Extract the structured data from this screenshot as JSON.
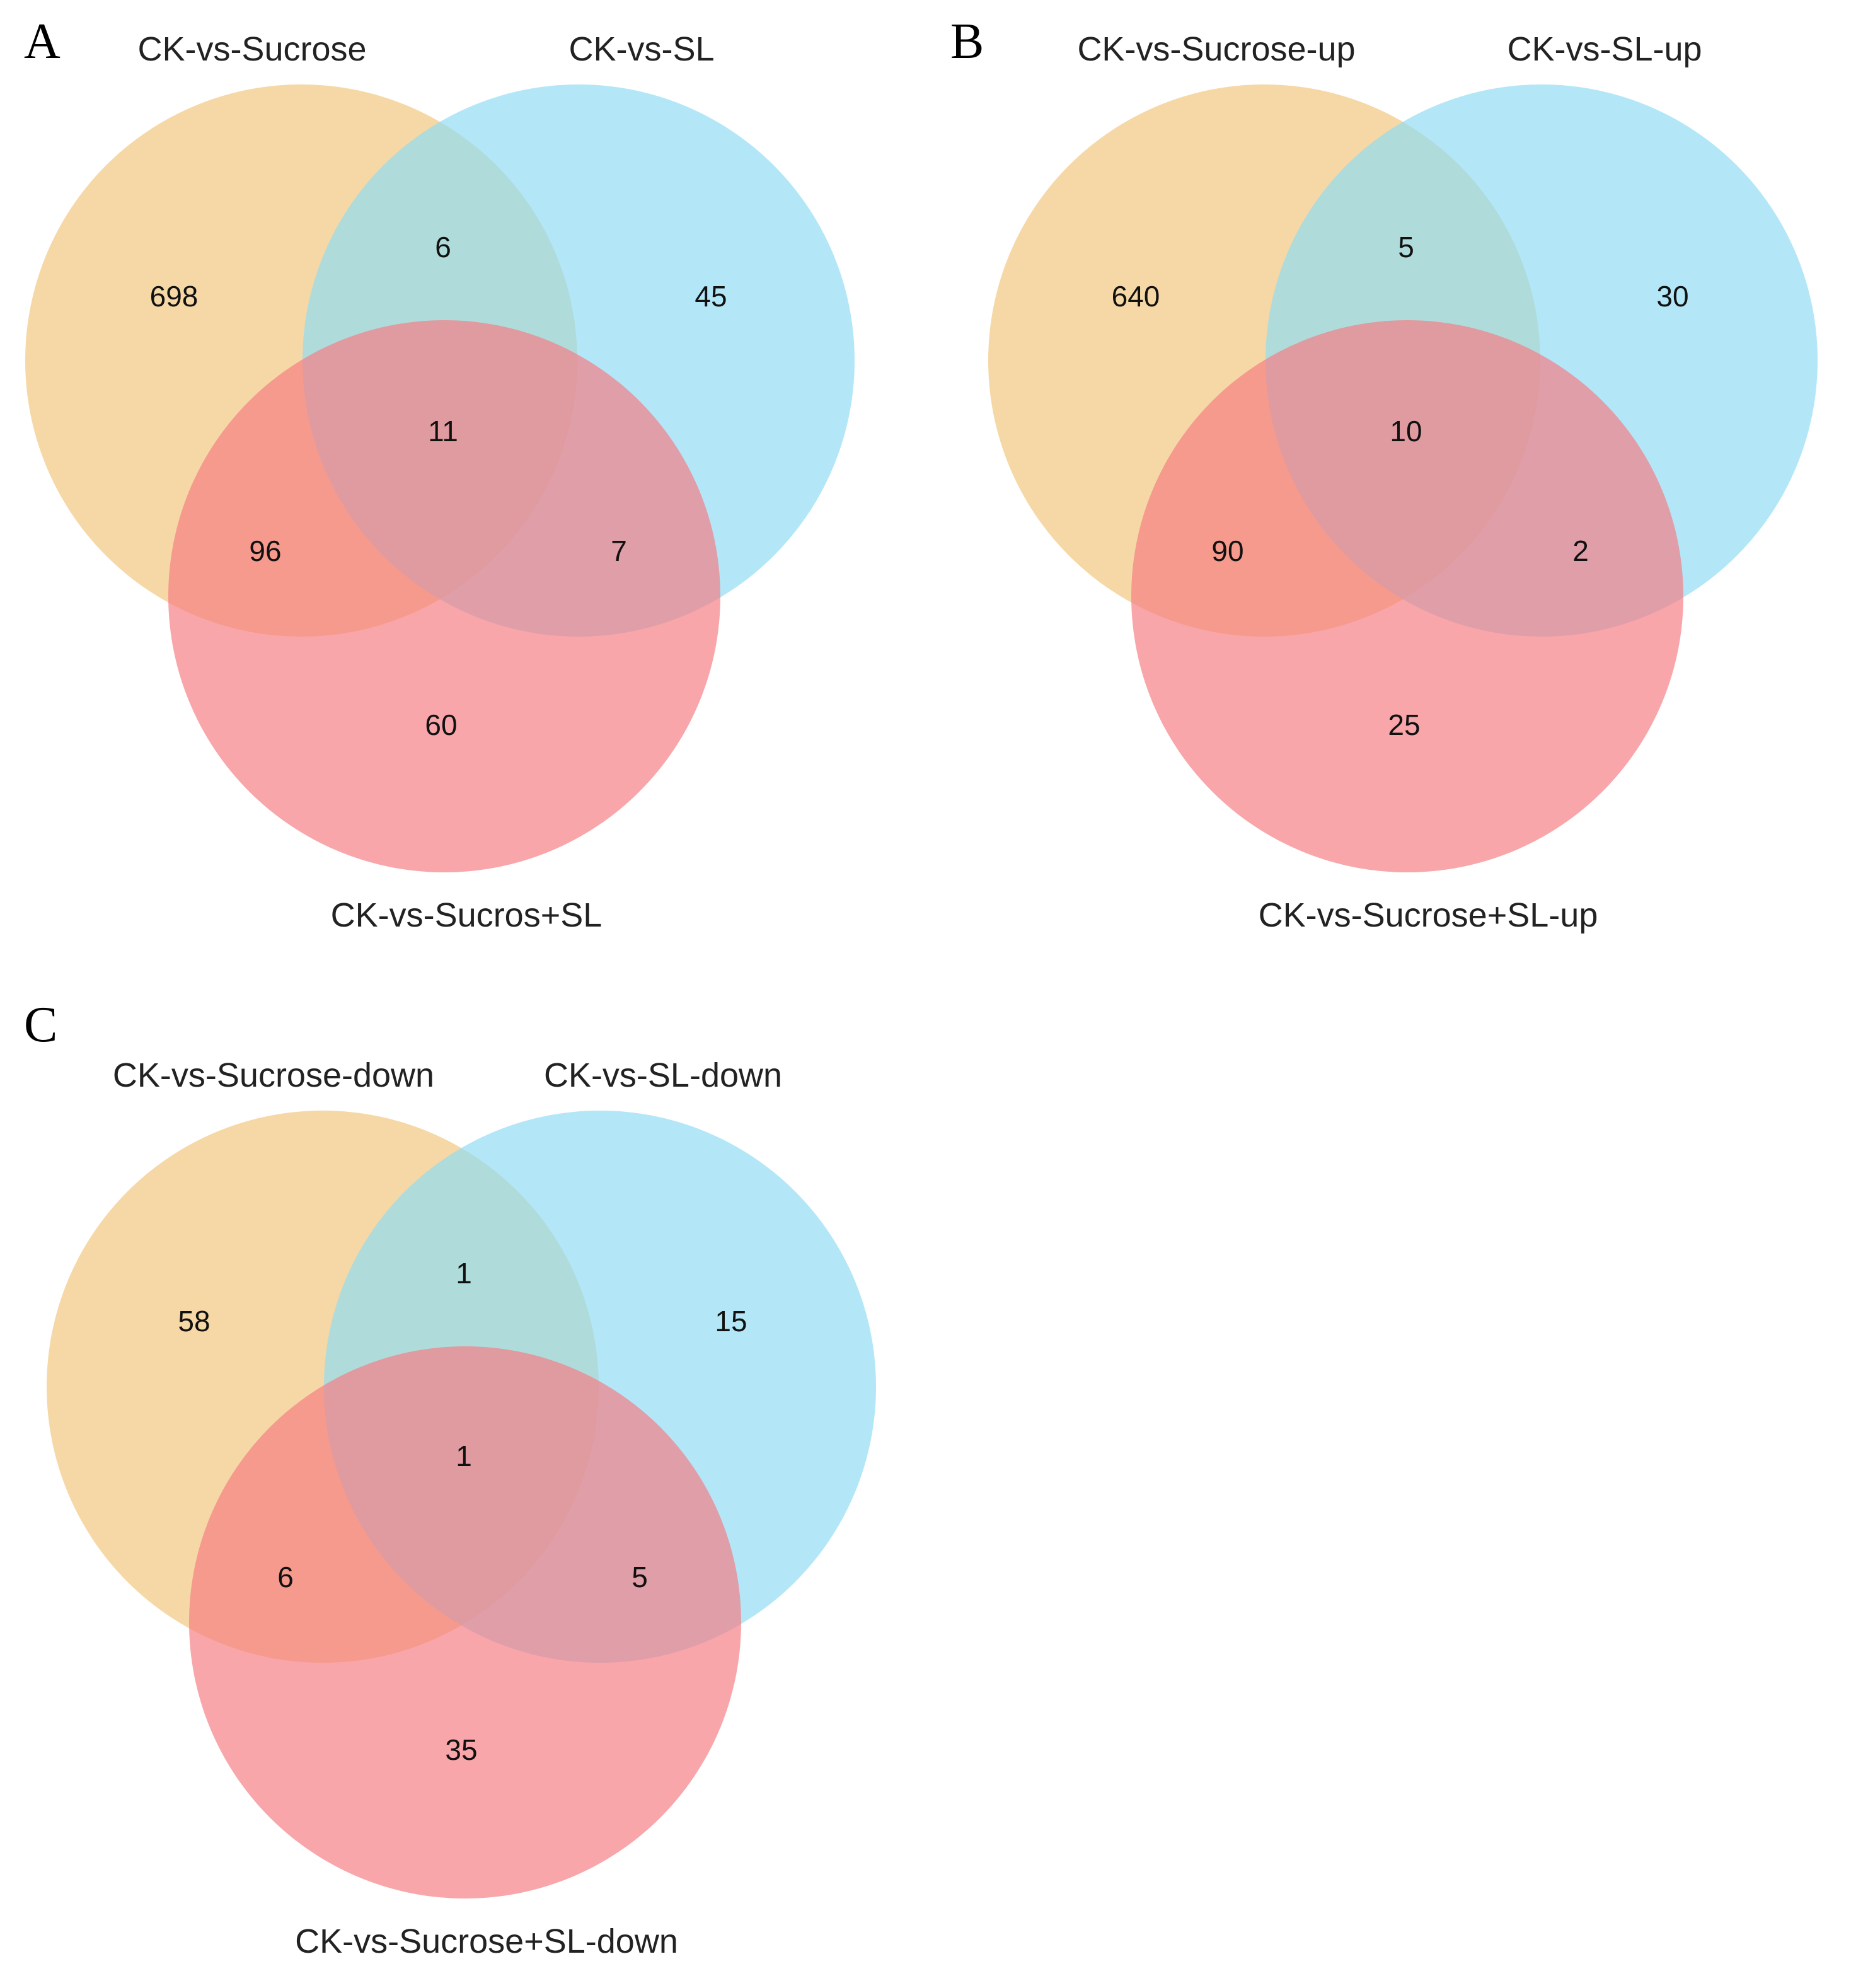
{
  "colors": {
    "set1": "#f2c57c",
    "set2": "#8fdcf4",
    "set3": "#f47c82",
    "background": "#ffffff"
  },
  "panels": [
    {
      "letter": "A",
      "set1": "CK-vs-Sucrose",
      "set2": "CK-vs-SL",
      "set3": "CK-vs-Sucros+SL",
      "counts": {
        "only1": "698",
        "only2": "45",
        "only3": "60",
        "s12": "6",
        "s13": "96",
        "s23": "7",
        "s123": "11"
      }
    },
    {
      "letter": "B",
      "set1": "CK-vs-Sucrose-up",
      "set2": "CK-vs-SL-up",
      "set3": "CK-vs-Sucrose+SL-up",
      "counts": {
        "only1": "640",
        "only2": "30",
        "only3": "25",
        "s12": "5",
        "s13": "90",
        "s23": "2",
        "s123": "10"
      }
    },
    {
      "letter": "C",
      "set1": "CK-vs-Sucrose-down",
      "set2": "CK-vs-SL-down",
      "set3": "CK-vs-Sucrose+SL-down",
      "counts": {
        "only1": "58",
        "only2": "15",
        "only3": "35",
        "s12": "1",
        "s13": "6",
        "s23": "5",
        "s123": "1"
      }
    }
  ]
}
